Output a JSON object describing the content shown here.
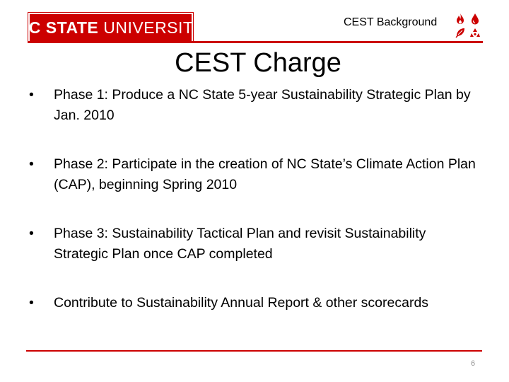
{
  "header": {
    "logo_bold": "NC STATE",
    "logo_regular": "UNIVERSITY",
    "section_label": "CEST Background",
    "icons": [
      "flame-icon",
      "water-drop-icon",
      "leaf-icon",
      "recycle-icon"
    ]
  },
  "slide": {
    "title": "CEST Charge",
    "bullets": [
      "Phase 1: Produce a NC State 5-year Sustainability Strategic Plan by Jan. 2010",
      "Phase 2:  Participate in the creation of NC State’s Climate Action Plan (CAP), beginning Spring 2010",
      "Phase 3:  Sustainability Tactical Plan and revisit Sustainability Strategic Plan once CAP completed",
      "Contribute to Sustainability Annual Report & other scorecards"
    ],
    "bullet_glyph": "•",
    "page_number": "6"
  },
  "colors": {
    "brand_red": "#cc0000",
    "text": "#000000",
    "page_number": "#999999"
  }
}
